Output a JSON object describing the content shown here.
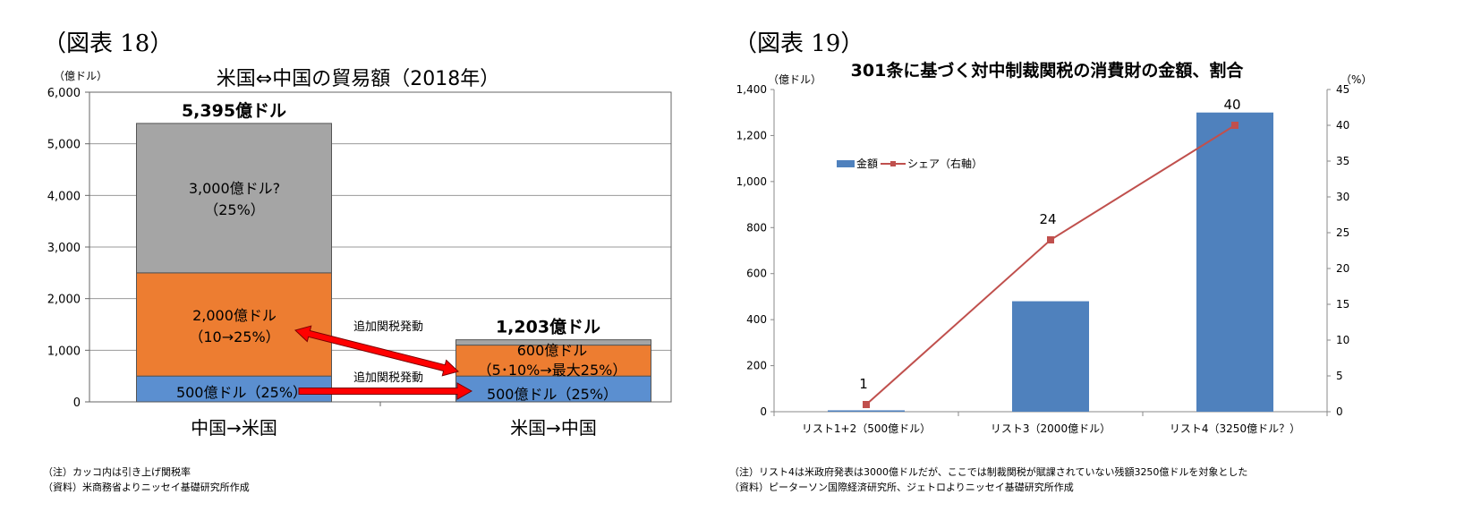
{
  "figures": [
    {
      "label": "（図表 18）",
      "unit_label": "（億ドル）",
      "notes": [
        "（注）カッコ内は引き上げ関税率",
        "（資料）米商務省よりニッセイ基礎研究所作成"
      ]
    },
    {
      "label": "（図表 19）",
      "unit_label": "（億ドル）",
      "right_unit_label": "（%）",
      "notes": [
        "（注）リスト4は米政府発表は3000億ドルだが、ここでは制裁関税が賦課されていない残額3250億ドルを対象とした",
        "（資料）ピーターソン国際経済研究所、ジェトロよりニッセイ基礎研究所作成"
      ]
    }
  ],
  "chart_data": [
    {
      "type": "bar",
      "stacked": true,
      "title": "米国⇔中国の貿易額（2018年）",
      "categories": [
        "中国→米国",
        "米国→中国"
      ],
      "y_ticks": [
        "0",
        "1,000",
        "2,000",
        "3,000",
        "4,000",
        "5,000",
        "6,000"
      ],
      "ylim": [
        0,
        6000
      ],
      "grid": true,
      "series": [
        {
          "values": [
            500,
            500
          ],
          "color": "#5b8fd0"
        },
        {
          "values": [
            2000,
            600
          ],
          "color": "#ed7d31"
        },
        {
          "values": [
            2895,
            103
          ],
          "color": "#a5a5a5"
        }
      ],
      "totals": [
        "5,395億ドル",
        "1,203億ドル"
      ],
      "annotations": {
        "a_gray1": "3,000億ドル?",
        "a_gray2": "（25%）",
        "a_or1": "2,000億ドル",
        "a_or2": "（10→25%）",
        "a_bl": "500億ドル（25%）",
        "b_or1": "600億ドル",
        "b_or2": "（5･10%→最大25%）",
        "b_bl": "500億ドル（25%）",
        "arrow1": "追加関税発動",
        "arrow2": "追加関税発動"
      },
      "arrow_color": "#ff0000"
    },
    {
      "type": "bar+line",
      "title": "301条に基づく対中制裁関税の消費財の金額、割合",
      "categories": [
        "リスト1+2（500億ドル）",
        "リスト3（2000億ドル）",
        "リスト4（3250億ドル？）"
      ],
      "bar_series": {
        "name": "金額",
        "values": [
          6,
          480,
          1300
        ],
        "color": "#4f81bd"
      },
      "line_series": {
        "name": "シェア（右軸）",
        "values": [
          1,
          24,
          40
        ],
        "labels": [
          "1",
          "24",
          "40"
        ],
        "color": "#c0504d"
      },
      "y_ticks": [
        "0",
        "200",
        "400",
        "600",
        "800",
        "1,000",
        "1,200",
        "1,400"
      ],
      "ylim": [
        0,
        1400
      ],
      "y2_ticks": [
        "0",
        "5",
        "10",
        "15",
        "20",
        "25",
        "30",
        "35",
        "40",
        "45"
      ],
      "y2lim": [
        0,
        45
      ],
      "grid": false,
      "legend_position": "top-left"
    }
  ]
}
